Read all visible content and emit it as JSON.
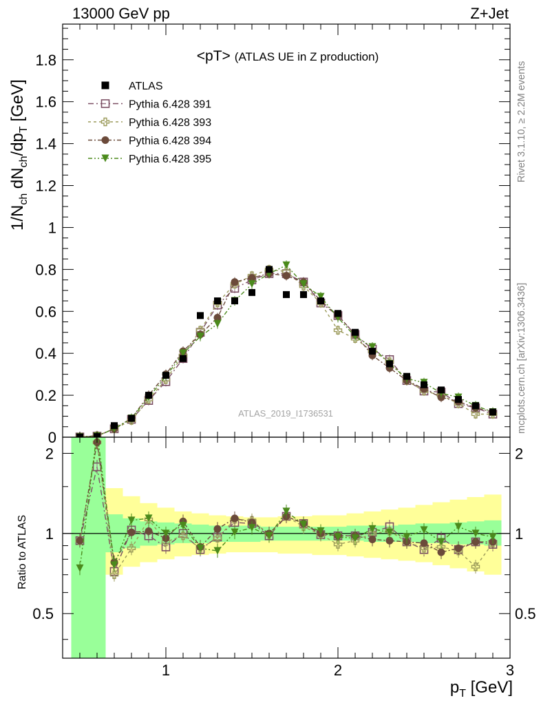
{
  "header": {
    "left": "13000 GeV pp",
    "right": "Z+Jet"
  },
  "side": {
    "rivet": "Rivet 3.1.10, ≥ 2.2M events",
    "mcplots": "mcplots.cern.ch [arXiv:1306.3436]"
  },
  "chart_data": {
    "type": "scatter",
    "title": "<pT> (ATLAS UE in Z production)",
    "title_main": "<pT>",
    "title_sub": "(ATLAS UE in Z production)",
    "watermark": "ATLAS_2019_I1736531",
    "ylabel": "1/N_ch dN_ch/dp_T [GeV]",
    "ratio_ylabel": "Ratio to ATLAS",
    "xlabel": "p_T [GeV]",
    "xlim": [
      0.4,
      3.0
    ],
    "ylim": [
      0,
      1.97
    ],
    "ratio_ylim": [
      0.34,
      2.3
    ],
    "x_ticks": [
      "1",
      "2",
      "3"
    ],
    "y_ticks": [
      "0",
      "0.2",
      "0.4",
      "0.6",
      "0.8",
      "1",
      "1.2",
      "1.4",
      "1.6",
      "1.8"
    ],
    "ratio_ticks": [
      "0.5",
      "1",
      "2"
    ],
    "x": [
      0.5,
      0.6,
      0.7,
      0.8,
      0.9,
      1.0,
      1.1,
      1.2,
      1.3,
      1.4,
      1.5,
      1.6,
      1.7,
      1.8,
      1.9,
      2.0,
      2.1,
      2.2,
      2.3,
      2.4,
      2.5,
      2.6,
      2.7,
      2.8,
      2.9
    ],
    "band_edges": [
      0.45,
      0.55,
      0.65,
      0.75,
      0.85,
      0.95,
      1.05,
      1.15,
      1.25,
      1.35,
      1.45,
      1.55,
      1.65,
      1.75,
      1.85,
      1.95,
      2.05,
      2.15,
      2.25,
      2.35,
      2.45,
      2.55,
      2.65,
      2.75,
      2.85,
      2.95
    ],
    "band_green": [
      [
        0.3,
        2.3
      ],
      [
        0.3,
        2.3
      ],
      [
        0.85,
        1.18
      ],
      [
        0.88,
        1.14
      ],
      [
        0.9,
        1.11
      ],
      [
        0.91,
        1.1
      ],
      [
        0.92,
        1.09
      ],
      [
        0.92,
        1.08
      ],
      [
        0.93,
        1.07
      ],
      [
        0.93,
        1.07
      ],
      [
        0.93,
        1.07
      ],
      [
        0.94,
        1.06
      ],
      [
        0.94,
        1.06
      ],
      [
        0.94,
        1.06
      ],
      [
        0.94,
        1.06
      ],
      [
        0.94,
        1.06
      ],
      [
        0.94,
        1.07
      ],
      [
        0.93,
        1.07
      ],
      [
        0.93,
        1.07
      ],
      [
        0.93,
        1.08
      ],
      [
        0.92,
        1.09
      ],
      [
        0.92,
        1.09
      ],
      [
        0.91,
        1.1
      ],
      [
        0.91,
        1.11
      ],
      [
        0.9,
        1.12
      ]
    ],
    "band_yellow": [
      [
        0.3,
        2.3
      ],
      [
        0.4,
        1.62
      ],
      [
        0.7,
        1.48
      ],
      [
        0.75,
        1.38
      ],
      [
        0.78,
        1.3
      ],
      [
        0.8,
        1.25
      ],
      [
        0.82,
        1.21
      ],
      [
        0.83,
        1.19
      ],
      [
        0.84,
        1.17
      ],
      [
        0.85,
        1.16
      ],
      [
        0.85,
        1.15
      ],
      [
        0.85,
        1.15
      ],
      [
        0.84,
        1.16
      ],
      [
        0.84,
        1.16
      ],
      [
        0.83,
        1.17
      ],
      [
        0.83,
        1.17
      ],
      [
        0.82,
        1.19
      ],
      [
        0.81,
        1.21
      ],
      [
        0.8,
        1.23
      ],
      [
        0.79,
        1.25
      ],
      [
        0.78,
        1.28
      ],
      [
        0.76,
        1.31
      ],
      [
        0.74,
        1.34
      ],
      [
        0.72,
        1.37
      ],
      [
        0.7,
        1.4
      ]
    ],
    "legend": [
      "ATLAS",
      "Pythia 6.428 391",
      "Pythia 6.428 393",
      "Pythia 6.428 394",
      "Pythia 6.428 395"
    ],
    "series": [
      {
        "name": "ATLAS",
        "marker": "square-filled",
        "color": "#000000",
        "values": [
          0.001,
          0.003,
          0.055,
          0.09,
          0.2,
          0.295,
          0.375,
          0.58,
          0.65,
          0.65,
          0.69,
          0.8,
          0.68,
          0.68,
          0.65,
          0.59,
          0.5,
          0.41,
          0.35,
          0.29,
          0.25,
          0.225,
          0.18,
          0.15,
          0.12
        ]
      },
      {
        "name": "Pythia 6.428 391",
        "marker": "square-open",
        "color": "#7b4f63",
        "values": [
          0.001,
          0.005,
          0.04,
          0.085,
          0.175,
          0.265,
          0.375,
          0.5,
          0.63,
          0.71,
          0.75,
          0.78,
          0.78,
          0.74,
          0.64,
          0.58,
          0.49,
          0.42,
          0.37,
          0.27,
          0.22,
          0.215,
          0.16,
          0.14,
          0.11
        ],
        "ratio": [
          0.94,
          1.78,
          0.72,
          1.03,
          0.98,
          0.89,
          1.0,
          0.87,
          0.97,
          1.1,
          1.09,
          0.98,
          1.16,
          1.09,
          0.99,
          0.98,
          0.98,
          1.01,
          1.06,
          0.93,
          0.87,
          0.96,
          0.87,
          0.93,
          0.91
        ]
      },
      {
        "name": "Pythia 6.428 393",
        "marker": "plus-open",
        "color": "#9b9a5a",
        "values": [
          0.001,
          0.007,
          0.04,
          0.08,
          0.18,
          0.275,
          0.39,
          0.51,
          0.64,
          0.73,
          0.77,
          0.8,
          0.79,
          0.72,
          0.64,
          0.51,
          0.47,
          0.41,
          0.36,
          0.27,
          0.22,
          0.2,
          0.16,
          0.11,
          0.11
        ],
        "ratio": [
          0.94,
          2.2,
          0.7,
          0.88,
          1.13,
          0.93,
          0.98,
          0.88,
          0.96,
          1.13,
          1.12,
          0.99,
          1.16,
          1.06,
          0.99,
          0.91,
          0.94,
          1.0,
          1.02,
          0.93,
          0.88,
          0.89,
          0.86,
          0.75,
          0.92
        ]
      },
      {
        "name": "Pythia 6.428 394",
        "marker": "circle-filled",
        "color": "#6b4a3a",
        "values": [
          0.001,
          0.007,
          0.04,
          0.09,
          0.2,
          0.3,
          0.41,
          0.49,
          0.57,
          0.74,
          0.76,
          0.78,
          0.77,
          0.74,
          0.65,
          0.58,
          0.49,
          0.39,
          0.33,
          0.27,
          0.23,
          0.19,
          0.17,
          0.14,
          0.12
        ],
        "ratio": [
          0.94,
          2.2,
          0.78,
          1.01,
          1.02,
          0.96,
          1.11,
          0.89,
          1.04,
          1.14,
          1.1,
          1.0,
          1.16,
          1.09,
          1.0,
          0.98,
          0.98,
          0.95,
          0.94,
          0.93,
          0.92,
          0.85,
          0.88,
          0.93,
          0.93
        ]
      },
      {
        "name": "Pythia 6.428 395",
        "marker": "triangle-down-filled",
        "color": "#4b8a1c",
        "values": [
          0.001,
          0.005,
          0.04,
          0.09,
          0.19,
          0.29,
          0.4,
          0.48,
          0.54,
          0.65,
          0.73,
          0.78,
          0.82,
          0.73,
          0.67,
          0.57,
          0.48,
          0.43,
          0.35,
          0.28,
          0.26,
          0.21,
          0.19,
          0.15,
          0.12
        ],
        "ratio": [
          0.74,
          2.4,
          0.76,
          1.12,
          1.14,
          1.0,
          1.07,
          0.88,
          0.86,
          1.01,
          1.05,
          0.98,
          1.21,
          1.08,
          1.02,
          0.97,
          0.96,
          1.04,
          1.01,
          0.97,
          1.03,
          0.93,
          1.06,
          1.0,
          0.97
        ]
      }
    ]
  }
}
